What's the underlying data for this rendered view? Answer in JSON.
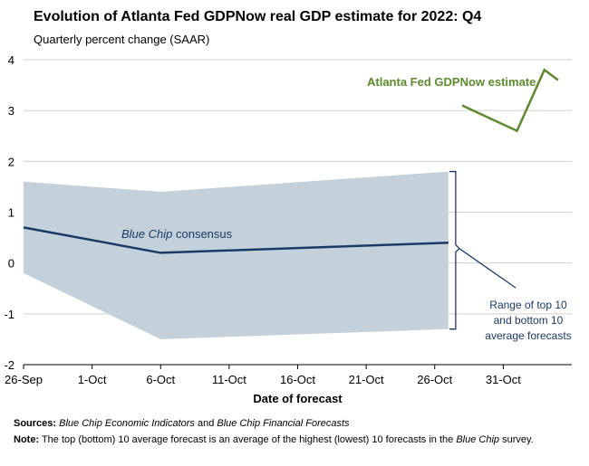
{
  "title": "Evolution of Atlanta Fed GDPNow real GDP estimate for 2022: Q4",
  "subtitle": "Quarterly percent change (SAAR)",
  "chart_data": {
    "type": "line",
    "xlabel": "Date of forecast",
    "ylabel": "",
    "x_ticks": [
      "26-Sep",
      "1-Oct",
      "6-Oct",
      "11-Oct",
      "16-Oct",
      "21-Oct",
      "26-Oct",
      "31-Oct"
    ],
    "x_range": [
      "26-Sep",
      "5-Nov"
    ],
    "ylim": [
      -2,
      4
    ],
    "y_ticks": [
      -2,
      -1,
      0,
      1,
      2,
      3,
      4
    ],
    "grid": "horizontal",
    "series": [
      {
        "name": "Atlanta Fed GDPNow estimate",
        "color": "#5e8a2e",
        "points": [
          {
            "x": "28-Oct",
            "y": 3.1
          },
          {
            "x": "1-Nov",
            "y": 2.6
          },
          {
            "x": "3-Nov",
            "y": 3.8
          },
          {
            "x": "4-Nov",
            "y": 3.6
          }
        ]
      },
      {
        "name": "Blue Chip consensus",
        "color": "#1a3a66",
        "points": [
          {
            "x": "26-Sep",
            "y": 0.7
          },
          {
            "x": "6-Oct",
            "y": 0.2
          },
          {
            "x": "27-Oct",
            "y": 0.4
          }
        ]
      }
    ],
    "band": {
      "color": "#c4d1da",
      "upper": [
        {
          "x": "26-Sep",
          "y": 1.6
        },
        {
          "x": "6-Oct",
          "y": 1.4
        },
        {
          "x": "27-Oct",
          "y": 1.8
        }
      ],
      "lower": [
        {
          "x": "26-Sep",
          "y": -0.2
        },
        {
          "x": "6-Oct",
          "y": -1.5
        },
        {
          "x": "27-Oct",
          "y": -1.3
        }
      ]
    },
    "annotations": {
      "gdpnow": "Atlanta Fed GDPNow estimate",
      "bluechip_italic": "Blue Chip",
      "bluechip_rest": " consensus",
      "range_lines": [
        "Range of top 10",
        "and bottom 10",
        "average forecasts"
      ]
    }
  },
  "footer": {
    "sources_label": "Sources:",
    "sources_italic_1": " Blue Chip Economic Indicators",
    "sources_and": " and ",
    "sources_italic_2": "Blue Chip Financial Forecasts",
    "note_label": "Note:",
    "note_text": " The top (bottom) 10 average forecast is an average of the highest (lowest) 10 forecasts in the ",
    "note_italic": "Blue Chip",
    "note_end": " survey."
  }
}
